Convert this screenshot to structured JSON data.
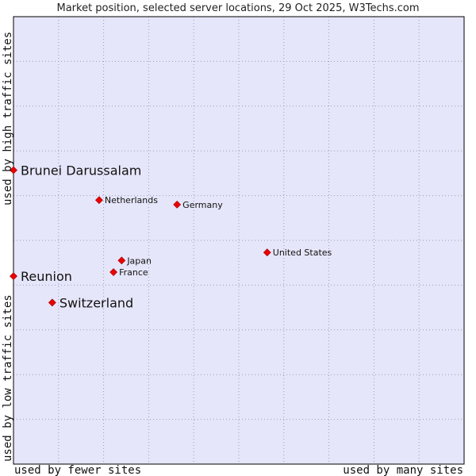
{
  "chart_data": {
    "type": "scatter",
    "title": "Market position, selected server locations, 29 Oct 2025, W3Techs.com",
    "xlabel_left": "used by fewer sites",
    "xlabel_right": "used by many sites",
    "ylabel_bottom": "used by low traffic sites",
    "ylabel_top": "used by high traffic sites",
    "xlim": [
      0,
      100
    ],
    "ylim": [
      0,
      100
    ],
    "grid": true,
    "colors": {
      "plot_bg": "#e6e6fa",
      "grid": "#9a9ab8",
      "border": "#000000",
      "marker": "#ee0000",
      "marker_edge": "#990000"
    },
    "points": [
      {
        "label": "Brunei Darussalam",
        "x": 0,
        "y": 65.7,
        "size": "large"
      },
      {
        "label": "Netherlands",
        "x": 19.0,
        "y": 59.0,
        "size": "small"
      },
      {
        "label": "Germany",
        "x": 36.3,
        "y": 58.0,
        "size": "small"
      },
      {
        "label": "United States",
        "x": 56.3,
        "y": 47.3,
        "size": "small"
      },
      {
        "label": "Japan",
        "x": 24.0,
        "y": 45.5,
        "size": "small"
      },
      {
        "label": "France",
        "x": 22.2,
        "y": 42.9,
        "size": "small"
      },
      {
        "label": "Reunion",
        "x": 0,
        "y": 42.0,
        "size": "large"
      },
      {
        "label": "Switzerland",
        "x": 8.6,
        "y": 36.1,
        "size": "large"
      }
    ]
  }
}
